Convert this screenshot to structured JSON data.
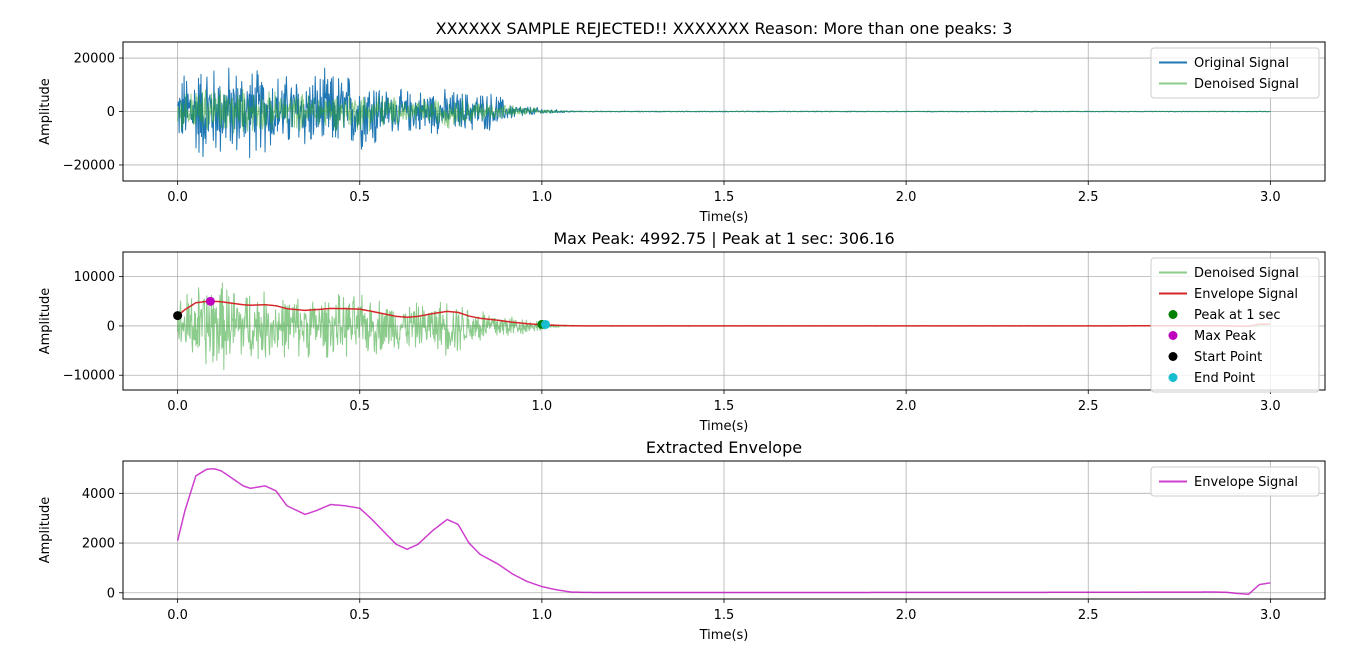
{
  "chart_data": [
    {
      "type": "line",
      "title": "XXXXXX SAMPLE REJECTED!! XXXXXXX Reason: More than one peaks: 3",
      "xlabel": "Time(s)",
      "ylabel": "Amplitude",
      "xlim": [
        -0.15,
        3.15
      ],
      "ylim": [
        -26000,
        26000
      ],
      "xticks": [
        0.0,
        0.5,
        1.0,
        1.5,
        2.0,
        2.5,
        3.0
      ],
      "xtick_labels": [
        "0.0",
        "0.5",
        "1.0",
        "1.5",
        "2.0",
        "2.5",
        "3.0"
      ],
      "yticks": [
        -20000,
        0,
        20000
      ],
      "ytick_labels": [
        "−20000",
        "0",
        "20000"
      ],
      "grid": true,
      "legend_position": "top-right",
      "series": [
        {
          "name": "Original Signal",
          "color": "#1f77b4",
          "style": "noise",
          "envelope_t": [
            0.0,
            0.02,
            0.08,
            0.1,
            0.2,
            0.3,
            0.4,
            0.5,
            0.55,
            0.56,
            0.6,
            0.7,
            0.8,
            0.88,
            0.9,
            0.95,
            1.0,
            1.05,
            1.1,
            3.0
          ],
          "envelope_amp": [
            12000,
            18000,
            22000,
            20000,
            19000,
            16000,
            17000,
            16000,
            16500,
            10000,
            9000,
            9500,
            8500,
            8000,
            4000,
            2500,
            1500,
            600,
            200,
            150
          ]
        },
        {
          "name": "Denoised Signal",
          "color": "#2ca02c",
          "alpha": 0.55,
          "style": "noise",
          "envelope_t": [
            0.0,
            0.05,
            0.1,
            0.2,
            0.3,
            0.4,
            0.5,
            0.55,
            0.6,
            0.7,
            0.75,
            0.8,
            0.9,
            1.0,
            1.05,
            1.1,
            3.0
          ],
          "envelope_amp": [
            7000,
            10000,
            11000,
            9000,
            7500,
            8000,
            8000,
            7500,
            6000,
            5500,
            7000,
            5000,
            3000,
            1000,
            300,
            100,
            80
          ]
        }
      ]
    },
    {
      "type": "line",
      "title": "Max Peak: 4992.75 | Peak at 1 sec: 306.16",
      "xlabel": "Time(s)",
      "ylabel": "Amplitude",
      "xlim": [
        -0.15,
        3.15
      ],
      "ylim": [
        -13000,
        15000
      ],
      "xticks": [
        0.0,
        0.5,
        1.0,
        1.5,
        2.0,
        2.5,
        3.0
      ],
      "xtick_labels": [
        "0.0",
        "0.5",
        "1.0",
        "1.5",
        "2.0",
        "2.5",
        "3.0"
      ],
      "yticks": [
        -10000,
        0,
        10000
      ],
      "ytick_labels": [
        "−10000",
        "0",
        "10000"
      ],
      "grid": true,
      "legend_position": "top-right",
      "series": [
        {
          "name": "Denoised Signal",
          "color": "#2ca02c",
          "alpha": 0.55,
          "style": "noise",
          "envelope_t": [
            0.0,
            0.05,
            0.1,
            0.2,
            0.3,
            0.4,
            0.5,
            0.55,
            0.6,
            0.7,
            0.75,
            0.8,
            0.9,
            1.0,
            1.05,
            1.1,
            3.0
          ],
          "envelope_amp": [
            6000,
            9500,
            10500,
            8500,
            7000,
            7000,
            7000,
            6500,
            5500,
            5000,
            7000,
            5000,
            3000,
            1000,
            300,
            100,
            80
          ]
        },
        {
          "name": "Envelope Signal",
          "color": "#d62728",
          "style": "envelope"
        }
      ],
      "markers": [
        {
          "name": "Peak at 1 sec",
          "color": "#008000",
          "x": 1.0,
          "y": 306.16
        },
        {
          "name": "Max Peak",
          "color": "#bf00bf",
          "x": 0.09,
          "y": 4992.75
        },
        {
          "name": "Start Point",
          "color": "#000000",
          "x": 0.0,
          "y": 2100
        },
        {
          "name": "End Point",
          "color": "#17becf",
          "x": 1.01,
          "y": 300
        }
      ]
    },
    {
      "type": "line",
      "title": "Extracted Envelope",
      "xlabel": "Time(s)",
      "ylabel": "Amplitude",
      "xlim": [
        -0.15,
        3.15
      ],
      "ylim": [
        -250,
        5300
      ],
      "xticks": [
        0.0,
        0.5,
        1.0,
        1.5,
        2.0,
        2.5,
        3.0
      ],
      "xtick_labels": [
        "0.0",
        "0.5",
        "1.0",
        "1.5",
        "2.0",
        "2.5",
        "3.0"
      ],
      "yticks": [
        0,
        2000,
        4000
      ],
      "ytick_labels": [
        "0",
        "2000",
        "4000"
      ],
      "grid": true,
      "legend_position": "top-right",
      "series": [
        {
          "name": "Envelope Signal",
          "color": "#bf00bf",
          "alpha": 0.75,
          "style": "envelope"
        }
      ]
    }
  ],
  "envelope": {
    "t": [
      0.0,
      0.02,
      0.05,
      0.08,
      0.1,
      0.12,
      0.15,
      0.18,
      0.2,
      0.24,
      0.27,
      0.3,
      0.35,
      0.38,
      0.42,
      0.46,
      0.5,
      0.53,
      0.57,
      0.6,
      0.63,
      0.66,
      0.7,
      0.74,
      0.77,
      0.8,
      0.83,
      0.88,
      0.92,
      0.96,
      1.0,
      1.04,
      1.08,
      1.12,
      1.2,
      1.5,
      2.0,
      2.5,
      2.85,
      2.88,
      2.91,
      2.94,
      2.97,
      3.0
    ],
    "y": [
      2100,
      3300,
      4700,
      4970,
      4990,
      4900,
      4600,
      4300,
      4200,
      4300,
      4100,
      3500,
      3150,
      3300,
      3550,
      3500,
      3400,
      3000,
      2400,
      1950,
      1750,
      1950,
      2500,
      2950,
      2750,
      2000,
      1550,
      1150,
      750,
      450,
      250,
      120,
      30,
      15,
      10,
      10,
      15,
      20,
      30,
      20,
      -30,
      -60,
      330,
      400
    ]
  }
}
